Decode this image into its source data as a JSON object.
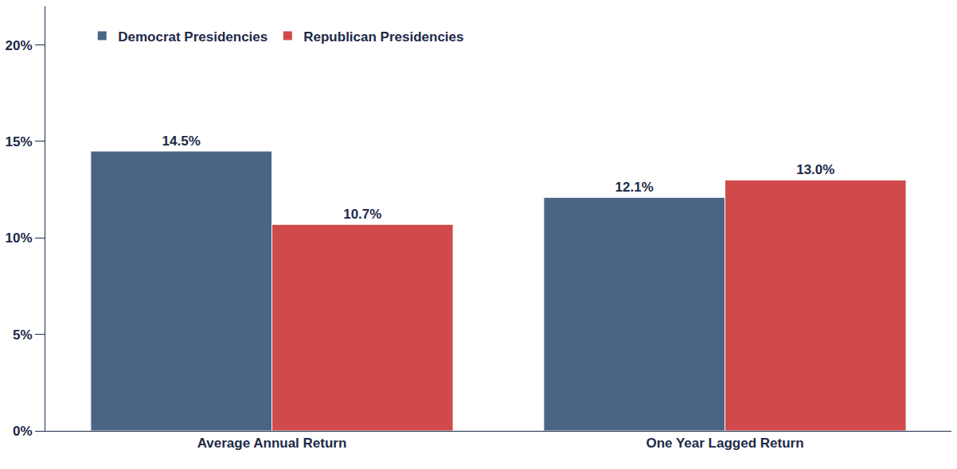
{
  "chart_data": {
    "type": "bar",
    "categories": [
      "Average Annual Return",
      "One Year Lagged Return"
    ],
    "series": [
      {
        "name": "Democrat Presidencies",
        "color": "#4a6584",
        "values": [
          14.5,
          12.1
        ],
        "value_labels": [
          "14.5%",
          "12.1%"
        ]
      },
      {
        "name": "Republican Presidencies",
        "color": "#d04a4b",
        "values": [
          10.7,
          13.0
        ],
        "value_labels": [
          "10.7%",
          "13.0%"
        ]
      }
    ],
    "ylim": [
      0,
      22
    ],
    "yticks": [
      {
        "value": 0,
        "label": "0%"
      },
      {
        "value": 5,
        "label": "5%"
      },
      {
        "value": 10,
        "label": "10%"
      },
      {
        "value": 15,
        "label": "15%"
      },
      {
        "value": 20,
        "label": "20%"
      }
    ],
    "grid": false,
    "legend": "top left",
    "data_labels": true
  }
}
